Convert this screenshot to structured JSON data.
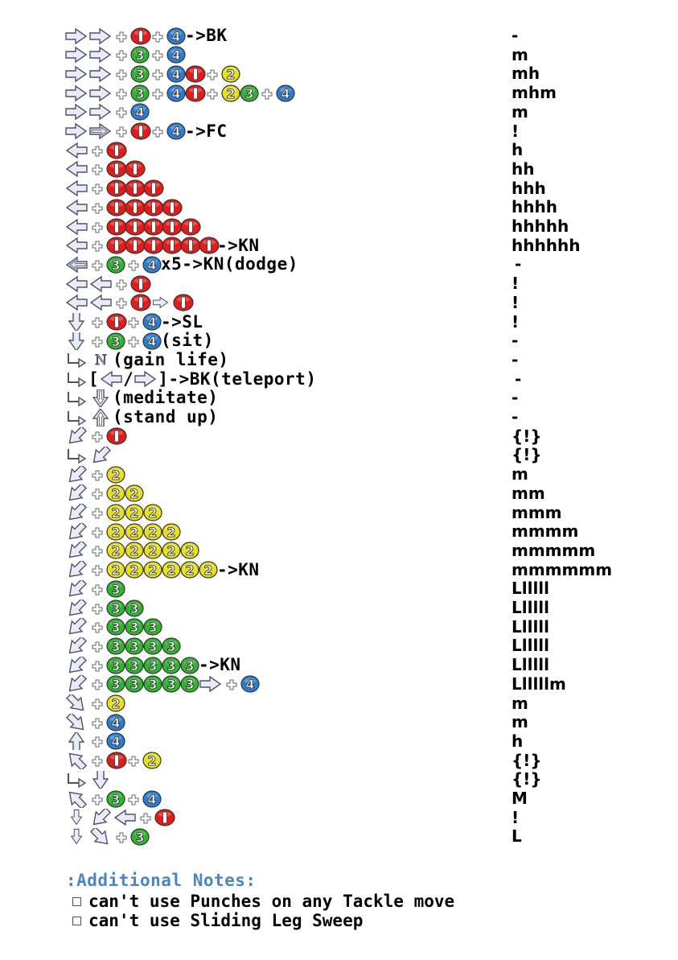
{
  "colors": {
    "button_red": "#e21b1b",
    "button_green": "#2fb52f",
    "button_blue": "#2a7fd4",
    "button_yellow": "#e6e021",
    "arrow_fill": "#e9ecf8",
    "arrow_stroke": "#4d5366",
    "notes_title": "#4a86c4"
  },
  "moves": [
    {
      "cmd": [
        {
          "a": "f"
        },
        {
          "a": "f"
        },
        {
          "p": 1
        },
        {
          "b": "1"
        },
        {
          "p": 1
        },
        {
          "b": "4"
        },
        {
          "t": "->BK"
        }
      ],
      "hit": "-"
    },
    {
      "cmd": [
        {
          "a": "f"
        },
        {
          "a": "f"
        },
        {
          "p": 1
        },
        {
          "b": "3"
        },
        {
          "p": 1
        },
        {
          "b": "4"
        }
      ],
      "hit": "m"
    },
    {
      "cmd": [
        {
          "a": "f"
        },
        {
          "a": "f"
        },
        {
          "p": 1
        },
        {
          "b": "3"
        },
        {
          "p": 1
        },
        {
          "b": "4"
        },
        {
          "b": "1"
        },
        {
          "p": 1
        },
        {
          "b": "2"
        }
      ],
      "hit": "mh"
    },
    {
      "cmd": [
        {
          "a": "f"
        },
        {
          "a": "f"
        },
        {
          "p": 1
        },
        {
          "b": "3"
        },
        {
          "p": 1
        },
        {
          "b": "4"
        },
        {
          "b": "1"
        },
        {
          "p": 1
        },
        {
          "b": "2"
        },
        {
          "b": "3"
        },
        {
          "p": 1
        },
        {
          "b": "4"
        }
      ],
      "hit": "mhm"
    },
    {
      "cmd": [
        {
          "a": "f"
        },
        {
          "a": "f"
        },
        {
          "p": 1
        },
        {
          "b": "4"
        }
      ],
      "hit": "m"
    },
    {
      "cmd": [
        {
          "a": "f"
        },
        {
          "a": "F"
        },
        {
          "p": 1
        },
        {
          "b": "1"
        },
        {
          "p": 1
        },
        {
          "b": "4"
        },
        {
          "t": "->FC"
        }
      ],
      "hit": "!"
    },
    {
      "cmd": [
        {
          "a": "b"
        },
        {
          "p": 1
        },
        {
          "b": "1"
        }
      ],
      "hit": "h"
    },
    {
      "cmd": [
        {
          "a": "b"
        },
        {
          "p": 1
        },
        {
          "b": "1"
        },
        {
          "b": "1"
        }
      ],
      "hit": "hh"
    },
    {
      "cmd": [
        {
          "a": "b"
        },
        {
          "p": 1
        },
        {
          "b": "1"
        },
        {
          "b": "1"
        },
        {
          "b": "1"
        }
      ],
      "hit": "hhh"
    },
    {
      "cmd": [
        {
          "a": "b"
        },
        {
          "p": 1
        },
        {
          "b": "1"
        },
        {
          "b": "1"
        },
        {
          "b": "1"
        },
        {
          "b": "1"
        }
      ],
      "hit": "hhhh"
    },
    {
      "cmd": [
        {
          "a": "b"
        },
        {
          "p": 1
        },
        {
          "b": "1"
        },
        {
          "b": "1"
        },
        {
          "b": "1"
        },
        {
          "b": "1"
        },
        {
          "b": "1"
        }
      ],
      "hit": "hhhhh"
    },
    {
      "cmd": [
        {
          "a": "b"
        },
        {
          "p": 1
        },
        {
          "b": "1"
        },
        {
          "b": "1"
        },
        {
          "b": "1"
        },
        {
          "b": "1"
        },
        {
          "b": "1"
        },
        {
          "b": "1"
        },
        {
          "t": "->KN"
        }
      ],
      "hit": "hhhhhh"
    },
    {
      "cmd": [
        {
          "a": "B"
        },
        {
          "p": 1
        },
        {
          "b": "3"
        },
        {
          "p": 1
        },
        {
          "b": "4"
        },
        {
          "t": "x5->KN(dodge)"
        }
      ],
      "hit": "-",
      "c": 1
    },
    {
      "cmd": [
        {
          "a": "b"
        },
        {
          "a": "b"
        },
        {
          "p": 1
        },
        {
          "b": "1"
        }
      ],
      "hit": "!"
    },
    {
      "cmd": [
        {
          "a": "b"
        },
        {
          "a": "b"
        },
        {
          "p": 1
        },
        {
          "b": "1"
        },
        {
          "a": "sf"
        },
        {
          "b": "1"
        }
      ],
      "hit": "!"
    },
    {
      "cmd": [
        {
          "a": "d"
        },
        {
          "p": 1
        },
        {
          "b": "1"
        },
        {
          "p": 1
        },
        {
          "b": "4"
        },
        {
          "t": "->SL"
        }
      ],
      "hit": "!"
    },
    {
      "cmd": [
        {
          "a": "d"
        },
        {
          "p": 1
        },
        {
          "b": "3"
        },
        {
          "p": 1
        },
        {
          "b": "4"
        },
        {
          "t": "(sit)"
        }
      ],
      "hit": "-"
    },
    {
      "cmd": [
        {
          "a": "L"
        },
        {
          "a": "N"
        },
        {
          "t": "(gain life)"
        }
      ],
      "hit": "-"
    },
    {
      "cmd": [
        {
          "a": "L"
        },
        {
          "t": "["
        },
        {
          "a": "b"
        },
        {
          "t": "/"
        },
        {
          "a": "f"
        },
        {
          "t": "]->BK(teleport)"
        }
      ],
      "hit": "-",
      "c": 1
    },
    {
      "cmd": [
        {
          "a": "L"
        },
        {
          "a": "D"
        },
        {
          "t": "(meditate)"
        }
      ],
      "hit": "-"
    },
    {
      "cmd": [
        {
          "a": "L"
        },
        {
          "a": "U"
        },
        {
          "t": "(stand up)"
        }
      ],
      "hit": "-"
    },
    {
      "cmd": [
        {
          "a": "db"
        },
        {
          "p": 1
        },
        {
          "b": "1"
        }
      ],
      "hit": "{!}"
    },
    {
      "cmd": [
        {
          "a": "L"
        },
        {
          "a": "db"
        }
      ],
      "hit": "{!}"
    },
    {
      "cmd": [
        {
          "a": "db"
        },
        {
          "p": 1
        },
        {
          "b": "2"
        }
      ],
      "hit": "m"
    },
    {
      "cmd": [
        {
          "a": "db"
        },
        {
          "p": 1
        },
        {
          "b": "2"
        },
        {
          "b": "2"
        }
      ],
      "hit": "mm"
    },
    {
      "cmd": [
        {
          "a": "db"
        },
        {
          "p": 1
        },
        {
          "b": "2"
        },
        {
          "b": "2"
        },
        {
          "b": "2"
        }
      ],
      "hit": "mmm"
    },
    {
      "cmd": [
        {
          "a": "db"
        },
        {
          "p": 1
        },
        {
          "b": "2"
        },
        {
          "b": "2"
        },
        {
          "b": "2"
        },
        {
          "b": "2"
        }
      ],
      "hit": "mmmm"
    },
    {
      "cmd": [
        {
          "a": "db"
        },
        {
          "p": 1
        },
        {
          "b": "2"
        },
        {
          "b": "2"
        },
        {
          "b": "2"
        },
        {
          "b": "2"
        },
        {
          "b": "2"
        }
      ],
      "hit": "mmmmm"
    },
    {
      "cmd": [
        {
          "a": "db"
        },
        {
          "p": 1
        },
        {
          "b": "2"
        },
        {
          "b": "2"
        },
        {
          "b": "2"
        },
        {
          "b": "2"
        },
        {
          "b": "2"
        },
        {
          "b": "2"
        },
        {
          "t": "->KN"
        }
      ],
      "hit": "mmmmmm"
    },
    {
      "cmd": [
        {
          "a": "db"
        },
        {
          "p": 1
        },
        {
          "b": "3"
        }
      ],
      "hit": "Llllll"
    },
    {
      "cmd": [
        {
          "a": "db"
        },
        {
          "p": 1
        },
        {
          "b": "3"
        },
        {
          "b": "3"
        }
      ],
      "hit": "Llllll"
    },
    {
      "cmd": [
        {
          "a": "db"
        },
        {
          "p": 1
        },
        {
          "b": "3"
        },
        {
          "b": "3"
        },
        {
          "b": "3"
        }
      ],
      "hit": "Llllll"
    },
    {
      "cmd": [
        {
          "a": "db"
        },
        {
          "p": 1
        },
        {
          "b": "3"
        },
        {
          "b": "3"
        },
        {
          "b": "3"
        },
        {
          "b": "3"
        }
      ],
      "hit": "Llllll"
    },
    {
      "cmd": [
        {
          "a": "db"
        },
        {
          "p": 1
        },
        {
          "b": "3"
        },
        {
          "b": "3"
        },
        {
          "b": "3"
        },
        {
          "b": "3"
        },
        {
          "b": "3"
        },
        {
          "t": "->KN"
        }
      ],
      "hit": "Llllll"
    },
    {
      "cmd": [
        {
          "a": "db"
        },
        {
          "p": 1
        },
        {
          "b": "3"
        },
        {
          "b": "3"
        },
        {
          "b": "3"
        },
        {
          "b": "3"
        },
        {
          "b": "3"
        },
        {
          "a": "f"
        },
        {
          "p": 1
        },
        {
          "b": "4"
        }
      ],
      "hit": "Llllllm"
    },
    {
      "cmd": [
        {
          "a": "df"
        },
        {
          "p": 1
        },
        {
          "b": "2"
        }
      ],
      "hit": "m"
    },
    {
      "cmd": [
        {
          "a": "df"
        },
        {
          "p": 1
        },
        {
          "b": "4"
        }
      ],
      "hit": "m"
    },
    {
      "cmd": [
        {
          "a": "u"
        },
        {
          "p": 1
        },
        {
          "b": "4"
        }
      ],
      "hit": "h"
    },
    {
      "cmd": [
        {
          "a": "ub"
        },
        {
          "p": 1
        },
        {
          "b": "1"
        },
        {
          "p": 1
        },
        {
          "b": "2"
        }
      ],
      "hit": "{!}"
    },
    {
      "cmd": [
        {
          "a": "L"
        },
        {
          "a": "d"
        }
      ],
      "hit": "{!}"
    },
    {
      "cmd": [
        {
          "a": "ub"
        },
        {
          "p": 1
        },
        {
          "b": "3"
        },
        {
          "p": 1
        },
        {
          "b": "4"
        }
      ],
      "hit": "M"
    },
    {
      "cmd": [
        {
          "a": "sd"
        },
        {
          "a": "db"
        },
        {
          "a": "b"
        },
        {
          "p": 1
        },
        {
          "b": "1"
        }
      ],
      "hit": "!"
    },
    {
      "cmd": [
        {
          "a": "sd"
        },
        {
          "a": "df"
        },
        {
          "p": 1
        },
        {
          "b": "3"
        }
      ],
      "hit": "L"
    }
  ],
  "notes": {
    "title": ":Additional Notes:",
    "items": [
      "can't use Punches on any Tackle move",
      "can't use Sliding Leg Sweep"
    ]
  }
}
